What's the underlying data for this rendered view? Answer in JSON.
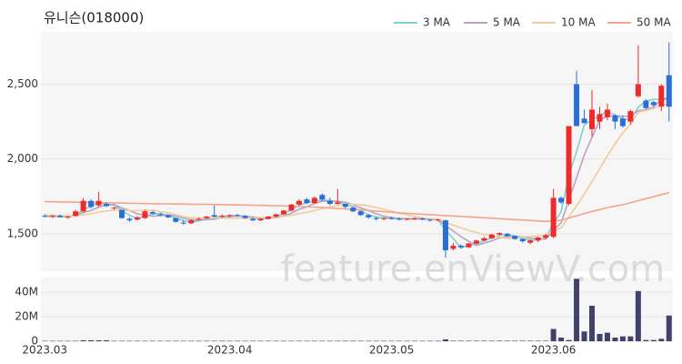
{
  "chart_data": {
    "type": "candlestick",
    "title": "유니슨(018000)",
    "watermark": "feature.enViewV.com",
    "categories": [
      "2023.03",
      null,
      null,
      null,
      null,
      null,
      null,
      null,
      null,
      null,
      null,
      null,
      null,
      null,
      null,
      null,
      null,
      null,
      null,
      null,
      null,
      null,
      null,
      null,
      "2023.04",
      null,
      null,
      null,
      null,
      null,
      null,
      null,
      null,
      null,
      null,
      null,
      null,
      null,
      null,
      null,
      null,
      null,
      null,
      null,
      null,
      "2023.05",
      null,
      null,
      null,
      null,
      null,
      null,
      null,
      null,
      null,
      null,
      null,
      null,
      null,
      null,
      null,
      null,
      null,
      null,
      null,
      null,
      "2023.06",
      null,
      null,
      null,
      null,
      null,
      null,
      null,
      null,
      null,
      null,
      null,
      null,
      null,
      null,
      null
    ],
    "open": [
      1620,
      1615,
      1620,
      1610,
      1620,
      1650,
      1720,
      1690,
      1700,
      1670,
      1660,
      1600,
      1595,
      1605,
      1645,
      1630,
      1625,
      1605,
      1575,
      1570,
      1595,
      1605,
      1625,
      1615,
      1620,
      1625,
      1620,
      1600,
      1590,
      1600,
      1615,
      1630,
      1655,
      1695,
      1730,
      1705,
      1760,
      1720,
      1700,
      1700,
      1675,
      1650,
      1625,
      1605,
      1600,
      1605,
      1600,
      1598,
      1600,
      1603,
      1595,
      1590,
      1590,
      1400,
      1420,
      1410,
      1435,
      1455,
      1470,
      1495,
      1500,
      1485,
      1465,
      1440,
      1455,
      1475,
      1480,
      1740,
      1700,
      2500,
      2270,
      2200,
      2250,
      2280,
      2290,
      2270,
      2250,
      2420,
      2390,
      2380,
      2350,
      2560
    ],
    "high": [
      1630,
      1625,
      1630,
      1620,
      1660,
      1740,
      1730,
      1780,
      1710,
      1680,
      1665,
      1610,
      1620,
      1660,
      1655,
      1640,
      1630,
      1610,
      1590,
      1595,
      1610,
      1620,
      1690,
      1630,
      1630,
      1635,
      1625,
      1610,
      1605,
      1620,
      1635,
      1660,
      1700,
      1730,
      1740,
      1750,
      1770,
      1740,
      1800,
      1705,
      1680,
      1655,
      1630,
      1615,
      1610,
      1615,
      1610,
      1605,
      1610,
      1608,
      1600,
      1600,
      1595,
      1440,
      1430,
      1440,
      1460,
      1480,
      1500,
      1510,
      1505,
      1490,
      1470,
      1460,
      1480,
      1500,
      1800,
      1750,
      2220,
      2590,
      2330,
      2460,
      2350,
      2370,
      2300,
      2290,
      2330,
      2760,
      2400,
      2390,
      2500,
      2780
    ],
    "low": [
      1610,
      1605,
      1610,
      1600,
      1615,
      1640,
      1670,
      1680,
      1680,
      1660,
      1600,
      1580,
      1590,
      1600,
      1630,
      1620,
      1605,
      1575,
      1560,
      1565,
      1590,
      1600,
      1610,
      1605,
      1610,
      1615,
      1600,
      1585,
      1585,
      1595,
      1610,
      1625,
      1650,
      1690,
      1700,
      1700,
      1720,
      1690,
      1695,
      1670,
      1645,
      1620,
      1600,
      1590,
      1590,
      1595,
      1590,
      1590,
      1592,
      1590,
      1580,
      1585,
      1340,
      1390,
      1400,
      1405,
      1430,
      1450,
      1465,
      1490,
      1480,
      1460,
      1440,
      1430,
      1445,
      1465,
      1470,
      1700,
      1690,
      2220,
      2240,
      2150,
      2200,
      2260,
      2200,
      2210,
      2230,
      2410,
      2330,
      2350,
      2320,
      2250
    ],
    "close": [
      1615,
      1620,
      1610,
      1615,
      1650,
      1720,
      1680,
      1720,
      1685,
      1675,
      1605,
      1590,
      1610,
      1650,
      1635,
      1625,
      1610,
      1580,
      1570,
      1590,
      1600,
      1615,
      1615,
      1620,
      1625,
      1620,
      1605,
      1590,
      1600,
      1615,
      1630,
      1655,
      1695,
      1720,
      1705,
      1740,
      1730,
      1700,
      1710,
      1680,
      1650,
      1625,
      1610,
      1600,
      1605,
      1600,
      1598,
      1600,
      1603,
      1595,
      1590,
      1595,
      1390,
      1420,
      1410,
      1435,
      1455,
      1470,
      1495,
      1505,
      1485,
      1465,
      1450,
      1455,
      1475,
      1490,
      1740,
      1710,
      2220,
      2220,
      2240,
      2330,
      2300,
      2330,
      2250,
      2220,
      2320,
      2500,
      2340,
      2360,
      2490,
      2350
    ],
    "up_color": "#ee2b2b",
    "down_color": "#2a6fd8",
    "ylim": [
      1250,
      2850
    ],
    "yticks": [
      {
        "value": 1500,
        "label": "1,500"
      },
      {
        "value": 2000,
        "label": "2,000"
      },
      {
        "value": 2500,
        "label": "2,500"
      }
    ],
    "grid": true,
    "legend": "top-right",
    "series": [
      {
        "name": "3 MA",
        "color": "#7fd3cf",
        "values": [
          1618,
          1617,
          1615,
          1615,
          1625,
          1662,
          1683,
          1707,
          1695,
          1693,
          1655,
          1623,
          1602,
          1617,
          1632,
          1637,
          1623,
          1605,
          1587,
          1580,
          1587,
          1602,
          1610,
          1617,
          1620,
          1622,
          1617,
          1605,
          1598,
          1602,
          1615,
          1633,
          1660,
          1690,
          1707,
          1722,
          1725,
          1723,
          1713,
          1697,
          1680,
          1652,
          1628,
          1612,
          1605,
          1602,
          1601,
          1599,
          1600,
          1599,
          1596,
          1593,
          1525,
          1468,
          1407,
          1422,
          1433,
          1453,
          1473,
          1490,
          1495,
          1485,
          1467,
          1457,
          1460,
          1473,
          1568,
          1647,
          1890,
          2050,
          2227,
          2263,
          2290,
          2320,
          2293,
          2267,
          2263,
          2347,
          2387,
          2400,
          2397,
          2400
        ]
      },
      {
        "name": "5 MA",
        "color": "#b9a2c4",
        "values": [
          1620,
          1618,
          1617,
          1615,
          1622,
          1643,
          1655,
          1679,
          1691,
          1696,
          1673,
          1655,
          1633,
          1626,
          1618,
          1622,
          1626,
          1620,
          1604,
          1595,
          1590,
          1595,
          1598,
          1608,
          1615,
          1619,
          1617,
          1612,
          1608,
          1606,
          1608,
          1618,
          1639,
          1663,
          1681,
          1703,
          1718,
          1719,
          1717,
          1712,
          1694,
          1673,
          1655,
          1633,
          1618,
          1608,
          1603,
          1601,
          1601,
          1599,
          1597,
          1597,
          1555,
          1518,
          1481,
          1450,
          1422,
          1438,
          1453,
          1472,
          1482,
          1484,
          1480,
          1470,
          1466,
          1465,
          1522,
          1574,
          1727,
          1876,
          2026,
          2144,
          2262,
          2284,
          2290,
          2286,
          2284,
          2324,
          2326,
          2348,
          2402,
          2408
        ]
      },
      {
        "name": "10 MA",
        "color": "#f2cc9a",
        "values": [
          1625,
          1624,
          1622,
          1620,
          1620,
          1628,
          1634,
          1645,
          1652,
          1659,
          1658,
          1655,
          1654,
          1658,
          1657,
          1648,
          1641,
          1627,
          1615,
          1607,
          1606,
          1608,
          1608,
          1605,
          1604,
          1604,
          1604,
          1606,
          1608,
          1610,
          1613,
          1617,
          1625,
          1635,
          1643,
          1655,
          1668,
          1679,
          1690,
          1696,
          1698,
          1695,
          1687,
          1675,
          1663,
          1650,
          1637,
          1627,
          1616,
          1606,
          1601,
          1598,
          1576,
          1558,
          1540,
          1523,
          1509,
          1496,
          1486,
          1478,
          1468,
          1476,
          1480,
          1482,
          1486,
          1489,
          1517,
          1541,
          1614,
          1687,
          1764,
          1850,
          1935,
          2022,
          2102,
          2175,
          2233,
          2312,
          2324,
          2338,
          2363,
          2365
        ]
      },
      {
        "name": "50 MA",
        "color": "#f4a48c",
        "values": [
          1715,
          1714,
          1713,
          1712,
          1711,
          1710,
          1709,
          1708,
          1707,
          1706,
          1705,
          1704,
          1703,
          1702,
          1701,
          1700,
          1700,
          1699,
          1699,
          1698,
          1698,
          1697,
          1696,
          1695,
          1694,
          1693,
          1692,
          1691,
          1690,
          1689,
          1688,
          1686,
          1684,
          1682,
          1680,
          1678,
          1675,
          1672,
          1669,
          1666,
          1663,
          1660,
          1656,
          1652,
          1648,
          1644,
          1640,
          1637,
          1634,
          1631,
          1628,
          1625,
          1622,
          1619,
          1616,
          1613,
          1610,
          1607,
          1604,
          1601,
          1598,
          1595,
          1592,
          1589,
          1586,
          1583,
          1585,
          1590,
          1605,
          1620,
          1635,
          1650,
          1662,
          1675,
          1685,
          1695,
          1707,
          1722,
          1735,
          1748,
          1762,
          1775
        ]
      }
    ],
    "volume": {
      "color": "#41416b",
      "values": [
        300000,
        300000,
        300000,
        300000,
        300000,
        800000,
        800000,
        800000,
        800000,
        300000,
        300000,
        300000,
        300000,
        300000,
        300000,
        300000,
        300000,
        300000,
        300000,
        300000,
        300000,
        300000,
        300000,
        300000,
        300000,
        300000,
        300000,
        300000,
        300000,
        300000,
        300000,
        300000,
        300000,
        300000,
        300000,
        300000,
        300000,
        300000,
        300000,
        300000,
        300000,
        300000,
        300000,
        300000,
        300000,
        300000,
        300000,
        300000,
        300000,
        300000,
        300000,
        300000,
        1500000,
        400000,
        400000,
        400000,
        400000,
        400000,
        400000,
        400000,
        400000,
        400000,
        400000,
        400000,
        400000,
        400000,
        10000000,
        3000000,
        1000000,
        51000000,
        8000000,
        29000000,
        6000000,
        7000000,
        3000000,
        4000000,
        4000000,
        41000000,
        1000000,
        1000000,
        2000000,
        21000000
      ],
      "ylim": [
        0,
        52000000
      ],
      "yticks": [
        {
          "value": 0,
          "label": "0"
        },
        {
          "value": 20000000,
          "label": "20M"
        },
        {
          "value": 40000000,
          "label": "40M"
        }
      ]
    }
  }
}
